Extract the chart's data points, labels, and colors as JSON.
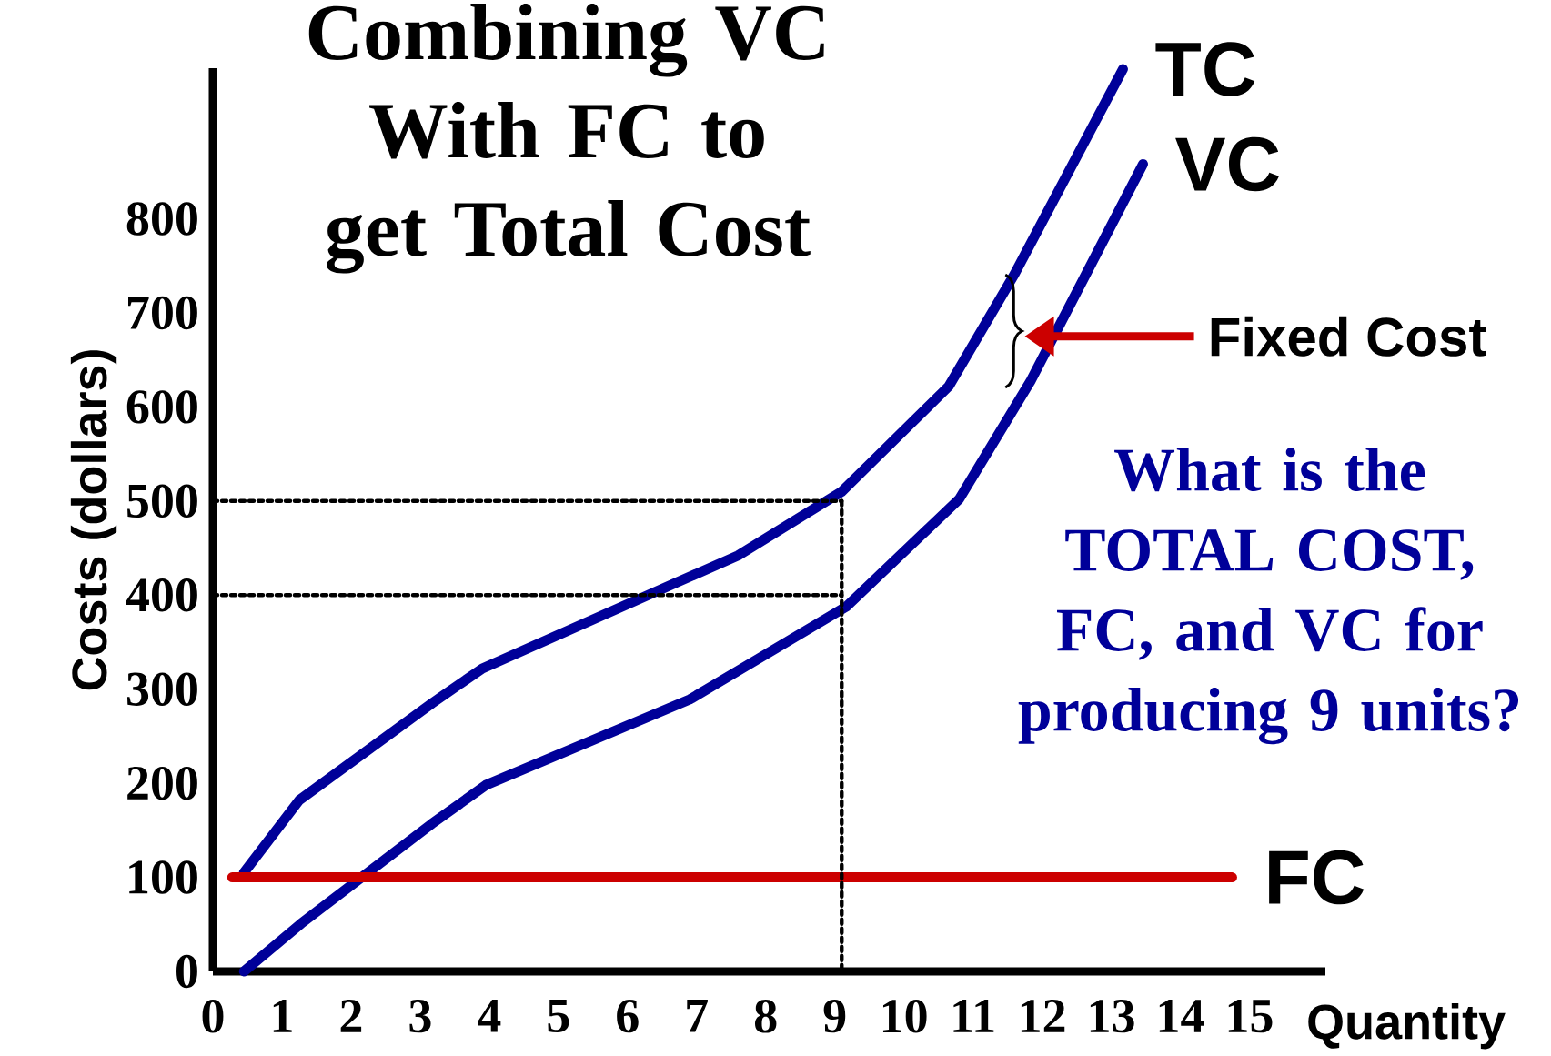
{
  "chart_data": {
    "type": "line",
    "title": "Combining VC With FC to get Total Cost",
    "xlabel": "Quantity",
    "ylabel": "Costs (dollars)",
    "xlim": [
      0,
      16.1
    ],
    "ylim": [
      0,
      960
    ],
    "xticks": [
      0,
      1,
      2,
      3,
      4,
      5,
      6,
      7,
      8,
      9,
      10,
      11,
      12,
      13,
      14,
      15
    ],
    "yticks": [
      0,
      100,
      200,
      300,
      400,
      500,
      600,
      700,
      800
    ],
    "legend": false,
    "grid": false,
    "marker": "none",
    "line_style": "solid",
    "series": [
      {
        "name": "TC",
        "color": "#000099",
        "x": [
          0.45,
          1.25,
          3.17,
          3.9,
          6.7,
          7.6,
          9.1,
          10.65,
          11.6,
          13.17
        ],
        "values": [
          105,
          182,
          285,
          322,
          413,
          442,
          510,
          622,
          741,
          959
        ]
      },
      {
        "name": "VC",
        "color": "#000099",
        "x": [
          0.45,
          1.28,
          3.17,
          3.95,
          6.9,
          7.75,
          9.17,
          10.8,
          11.83,
          13.46
        ],
        "values": [
          0,
          51,
          157,
          198,
          289,
          326,
          388,
          502,
          627,
          858
        ]
      },
      {
        "name": "FC",
        "color": "#cc0000",
        "x": [
          0.28,
          14.75
        ],
        "values": [
          100,
          100
        ]
      },
      {
        "color": "#000000",
        "line_style": "dotted",
        "x": [
          0,
          9.1
        ],
        "values": [
          500,
          500
        ]
      },
      {
        "color": "#000000",
        "line_style": "dotted",
        "x": [
          0,
          9.1
        ],
        "values": [
          400,
          400
        ]
      },
      {
        "color": "#000000",
        "line_style": "dotted",
        "x": [
          9.1,
          9.1
        ],
        "values": [
          500,
          0
        ]
      }
    ],
    "annotations": [
      "Fixed Cost",
      "What is the TOTAL COST, FC, and VC for producing 9 units?"
    ]
  }
}
